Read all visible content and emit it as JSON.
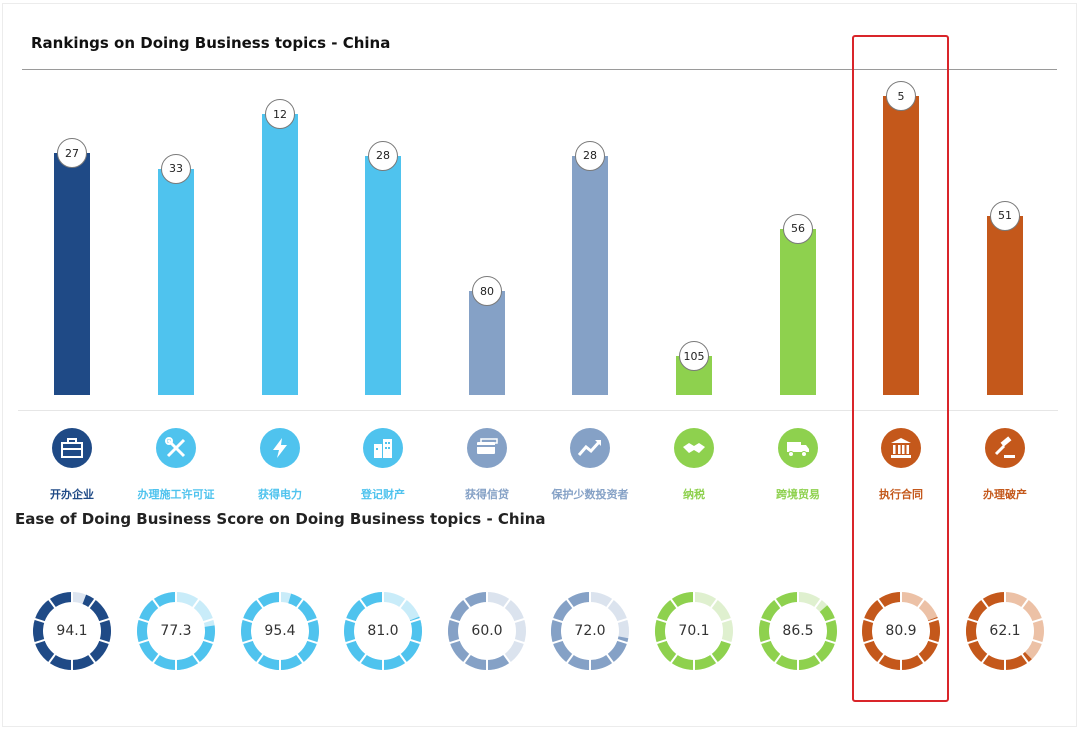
{
  "chart_data": [
    {
      "type": "bar",
      "title": "Rankings on Doing Business topics - China",
      "categories": [
        "开办企业",
        "办理施工许可证",
        "获得电力",
        "登记财产",
        "获得信贷",
        "保护少数投资者",
        "纳税",
        "跨境贸易",
        "执行合同",
        "办理破产"
      ],
      "values": [
        27,
        33,
        12,
        28,
        80,
        28,
        105,
        56,
        5,
        51
      ],
      "colors": [
        "#1f4a86",
        "#4fc3ee",
        "#4fc3ee",
        "#4fc3ee",
        "#85a1c6",
        "#85a1c6",
        "#8ed14e",
        "#8ed14e",
        "#c4581b",
        "#c4581b"
      ],
      "icons": [
        "briefcase-icon",
        "tools-icon",
        "lightning-icon",
        "buildings-icon",
        "credit-card-icon",
        "trend-up-icon",
        "handshake-icon",
        "truck-icon",
        "courthouse-icon",
        "gavel-icon"
      ],
      "ylim": [
        0,
        120
      ],
      "xlabel": "",
      "ylabel": "",
      "legend": "none",
      "grid": false
    },
    {
      "type": "pie",
      "title": "Ease of Doing Business Score on Doing Business topics - China",
      "categories": [
        "开办企业",
        "办理施工许可证",
        "获得电力",
        "登记财产",
        "获得信贷",
        "保护少数投资者",
        "纳税",
        "跨境贸易",
        "执行合同",
        "办理破产"
      ],
      "values": [
        94.1,
        77.3,
        95.4,
        81.0,
        60.0,
        72.0,
        70.1,
        86.5,
        80.9,
        62.1
      ],
      "labels": [
        "94.1",
        "77.3",
        "95.4",
        "81.0",
        "60.0",
        "72.0",
        "70.1",
        "86.5",
        "80.9",
        "62.1"
      ],
      "max": 100
    }
  ],
  "colors": {
    "highlight_border": "#d9252a",
    "track": {
      "#1f4a86": "#dde5f0",
      "#4fc3ee": "#c9ecf9",
      "#85a1c6": "#dbe3ee",
      "#8ed14e": "#dff0cf",
      "#c4581b": "#ecc1a6"
    }
  },
  "highlighted_topic": "执行合同"
}
